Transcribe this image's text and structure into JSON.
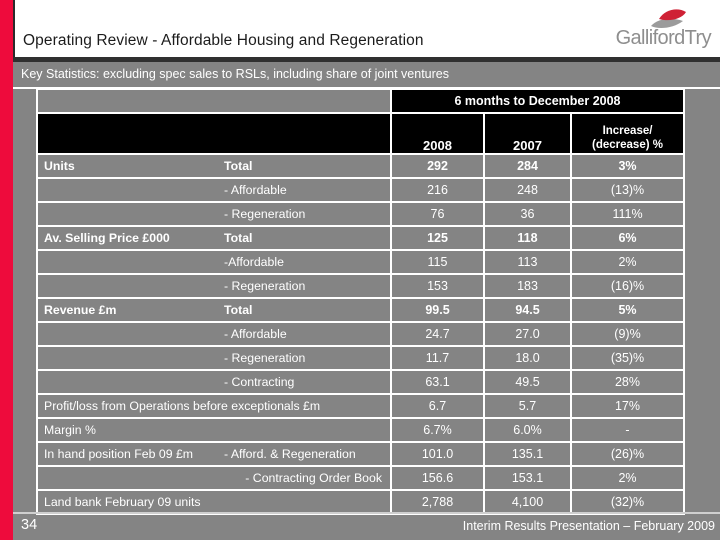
{
  "slide": {
    "title": "Operating Review - Affordable Housing and Regeneration",
    "subtitle": "Key Statistics:  excluding spec sales to RSLs, including share of joint ventures",
    "logo_text": "GallifordTry",
    "page_number": "34",
    "footer": "Interim Results Presentation – February 2009"
  },
  "colors": {
    "accent_red": "#ee0b3c",
    "slide_gray": "#848484",
    "header_black": "#000000",
    "grid_white": "#ffffff",
    "logo_gray": "#8e8e8e"
  },
  "table": {
    "banner": "6 months to December 2008",
    "col_headers": {
      "y2008": "2008",
      "y2007": "2007",
      "change_line1": "Increase/",
      "change_line2": "(decrease) %"
    },
    "rows": [
      {
        "category": "Units",
        "metric": "Total",
        "bold": true,
        "v2008": "292",
        "v2007": "284",
        "change": "3%"
      },
      {
        "category": "",
        "metric": "- Affordable",
        "v2008": "216",
        "v2007": "248",
        "change": "(13)%"
      },
      {
        "category": "",
        "metric": "- Regeneration",
        "v2008": "76",
        "v2007": "36",
        "change": "111%"
      },
      {
        "category": "Av. Selling Price £000",
        "metric": "Total",
        "bold": true,
        "v2008": "125",
        "v2007": "118",
        "change": "6%"
      },
      {
        "category": "",
        "metric": "-Affordable",
        "v2008": "115",
        "v2007": "113",
        "change": "2%"
      },
      {
        "category": "",
        "metric": "- Regeneration",
        "v2008": "153",
        "v2007": "183",
        "change": "(16)%"
      },
      {
        "category": "Revenue  £m",
        "metric": "Total",
        "bold": true,
        "v2008": "99.5",
        "v2007": "94.5",
        "change": "5%"
      },
      {
        "category": "",
        "metric": "- Affordable",
        "v2008": "24.7",
        "v2007": "27.0",
        "change": "(9)%"
      },
      {
        "category": "",
        "metric": "- Regeneration",
        "v2008": "11.7",
        "v2007": "18.0",
        "change": "(35)%"
      },
      {
        "category": "",
        "metric": "- Contracting",
        "v2008": "63.1",
        "v2007": "49.5",
        "change": "28%"
      },
      {
        "category": "Profit/loss from Operations before exceptionals  £m",
        "metric": "",
        "v2008": "6.7",
        "v2007": "5.7",
        "change": "17%"
      },
      {
        "category": "Margin %",
        "metric": "",
        "v2008": "6.7%",
        "v2007": "6.0%",
        "change": "-"
      },
      {
        "category": "In hand position Feb 09 £m",
        "metric": "- Afford. & Regeneration",
        "v2008": "101.0",
        "v2007": "135.1",
        "change": "(26)%"
      },
      {
        "category": "",
        "metric": "- Contracting Order Book",
        "metric_align": "right",
        "v2008": "156.6",
        "v2007": "153.1",
        "change": "2%"
      },
      {
        "category": "Land bank February 09 units",
        "metric": "",
        "v2008": "2,788",
        "v2007": "4,100",
        "change": "(32)%"
      }
    ]
  }
}
